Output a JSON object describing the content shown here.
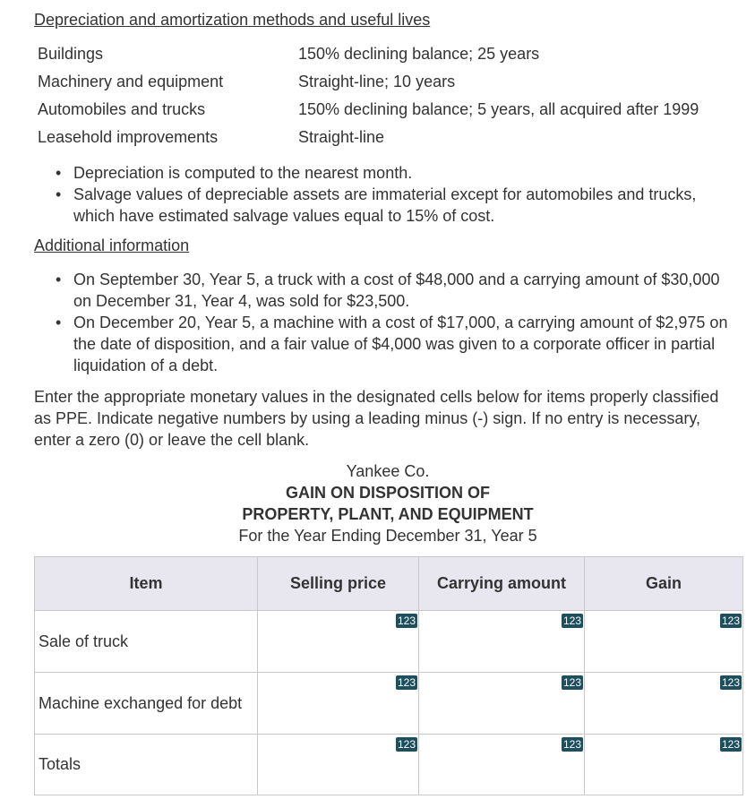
{
  "methods_heading": "Depreciation and amortization methods and useful lives",
  "methods": [
    [
      "Buildings",
      "150% declining balance; 25 years"
    ],
    [
      "Machinery and equipment",
      "Straight-line; 10 years"
    ],
    [
      "Automobiles and trucks",
      "150% declining balance; 5 years, all acquired after 1999"
    ],
    [
      "Leasehold improvements",
      "Straight-line"
    ]
  ],
  "notes": [
    "Depreciation is computed to the nearest month.",
    "Salvage values of depreciable assets are immaterial except for automobiles and trucks, which have estimated salvage values equal to 15% of cost."
  ],
  "additional_heading": "Additional information",
  "additional": [
    "On September 30, Year 5, a truck with a cost of $48,000 and a carrying amount of $30,000 on December 31, Year 4, was sold for $23,500.",
    "On December 20, Year 5, a machine with a cost of $17,000, a carrying amount of $2,975 on the date of disposition, and a fair value of $4,000 was given to a corporate officer in partial liquidation of a debt."
  ],
  "instructions": "Enter the appropriate monetary values in the designated cells below for items properly classified as PPE. Indicate negative numbers by using a leading minus (-) sign. If no entry is necessary, enter a zero (0) or leave the cell blank.",
  "report": {
    "company": "Yankee Co.",
    "title_line1": "GAIN ON DISPOSITION OF",
    "title_line2": "PROPERTY, PLANT, AND EQUIPMENT",
    "period": "For the Year Ending December 31, Year 5"
  },
  "table": {
    "headers": [
      "Item",
      "Selling price",
      "Carrying amount",
      "Gain"
    ],
    "rows": [
      "Sale of truck",
      "Machine exchanged for debt",
      "Totals"
    ],
    "input_badge": "123"
  }
}
